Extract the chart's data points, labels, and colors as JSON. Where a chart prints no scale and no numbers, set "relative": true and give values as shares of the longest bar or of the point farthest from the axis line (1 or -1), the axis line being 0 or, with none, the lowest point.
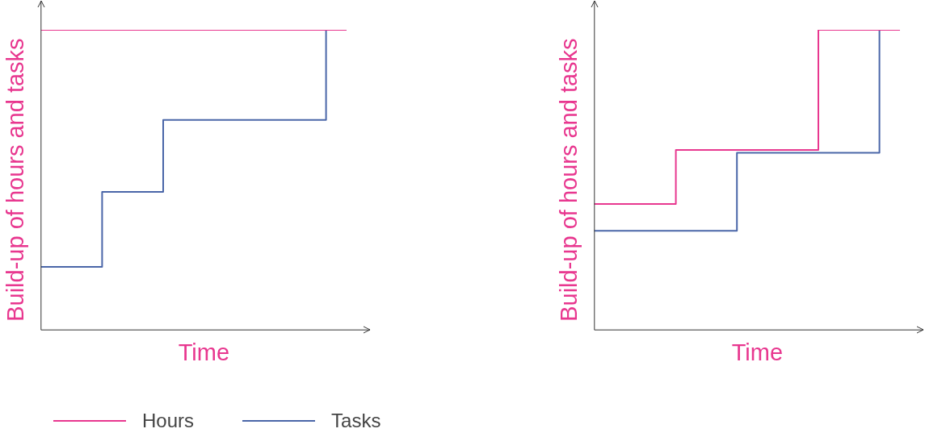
{
  "chart_data": [
    {
      "type": "step",
      "relative": true,
      "xlabel": "Time",
      "ylabel": "Build-up of hours and tasks",
      "legend": "bottom",
      "categories": [
        null,
        null,
        null,
        null,
        null,
        null,
        null,
        null,
        null,
        null,
        null,
        null,
        null,
        null,
        null,
        null,
        null
      ],
      "series": [
        {
          "name": "Hours",
          "color": "#e8378f",
          "values": [
            1,
            1,
            1,
            1,
            1,
            1,
            1,
            1,
            1,
            1,
            1,
            1,
            1,
            1,
            1,
            1,
            null
          ]
        },
        {
          "name": "Tasks",
          "color": "#4a66a8",
          "values": [
            0.21,
            0.21,
            0.21,
            0.21,
            0.46,
            0.46,
            0.46,
            0.7,
            0.7,
            0.7,
            0.7,
            0.7,
            0.7,
            0.7,
            0.7,
            1,
            null
          ]
        }
      ]
    },
    {
      "type": "step",
      "relative": true,
      "xlabel": "Time",
      "ylabel": "Build-up of hours and tasks",
      "categories": [
        null,
        null,
        null,
        null,
        null,
        null,
        null,
        null,
        null,
        null,
        null,
        null,
        null,
        null,
        null,
        null,
        null
      ],
      "series": [
        {
          "color": "#e8378f",
          "values": [
            0.42,
            0.42,
            0.42,
            0.42,
            0.42,
            0.6,
            0.6,
            0.6,
            0.6,
            0.6,
            0.6,
            0.6,
            1,
            1,
            1,
            1,
            null
          ]
        },
        {
          "color": "#4a66a8",
          "values": [
            0.33,
            0.33,
            0.33,
            0.33,
            0.33,
            0.33,
            0.33,
            0.33,
            0.59,
            0.59,
            0.59,
            0.59,
            0.59,
            0.59,
            0.59,
            1,
            null
          ]
        }
      ]
    }
  ]
}
